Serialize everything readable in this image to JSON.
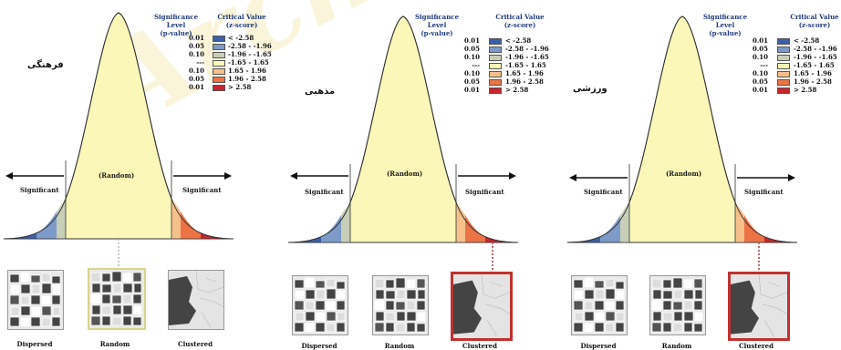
{
  "legend": {
    "sig_header": "Significance Level",
    "sig_sub": "(p-value)",
    "crit_header": "Critical Value",
    "crit_sub": "(z-score)",
    "rows": [
      {
        "p": "0.01",
        "z": "< -2.58",
        "color": "#3b5fa8"
      },
      {
        "p": "0.05",
        "z": "-2.58 - -1.96",
        "color": "#7d9ac8"
      },
      {
        "p": "0.10",
        "z": "-1.96 - -1.65",
        "color": "#c8cfb8"
      },
      {
        "p": "---",
        "z": "-1.65 - 1.65",
        "color": "#fbf7b8"
      },
      {
        "p": "0.10",
        "z": "1.65 - 1.96",
        "color": "#f5c08a"
      },
      {
        "p": "0.05",
        "z": "1.96 - 2.58",
        "color": "#ec7346"
      },
      {
        "p": "0.01",
        "z": "> 2.58",
        "color": "#c8262c"
      }
    ]
  },
  "curve_labels": {
    "random": "(Random)",
    "significant_left": "Significant",
    "significant_right": "Significant"
  },
  "captions": [
    "Dispersed",
    "Random",
    "Clustered"
  ],
  "panels": [
    {
      "title": "فرهنگی",
      "highlight": "Random"
    },
    {
      "title": "مذهبی",
      "highlight": "Clustered"
    },
    {
      "title": "ورزشی",
      "highlight": "Clustered"
    }
  ],
  "watermark": "Archive of SID"
}
